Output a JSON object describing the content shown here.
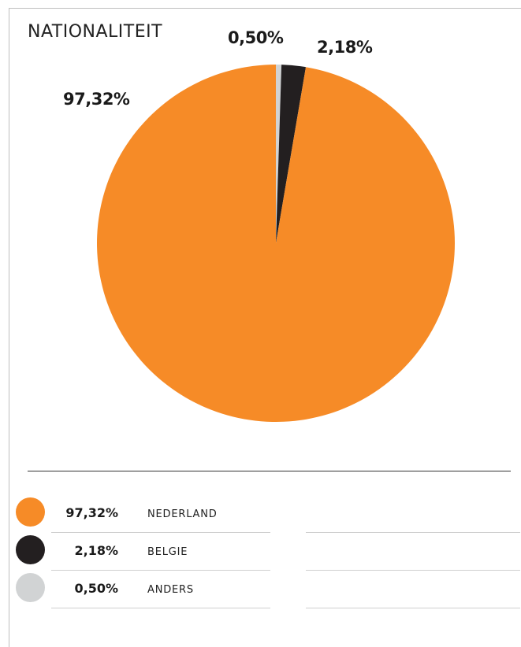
{
  "chart_data": {
    "type": "pie",
    "title": "NATIONALITEIT",
    "slices": [
      {
        "name": "NEDERLAND",
        "value": 97.32,
        "label": "97,32%",
        "color": "#f68b27"
      },
      {
        "name": "BELGIE",
        "value": 2.18,
        "label": "2,18%",
        "color": "#231f20"
      },
      {
        "name": "ANDERS",
        "value": 0.5,
        "label": "0,50%",
        "color": "#d1d3d4"
      }
    ],
    "legend_placement": "bottom"
  }
}
